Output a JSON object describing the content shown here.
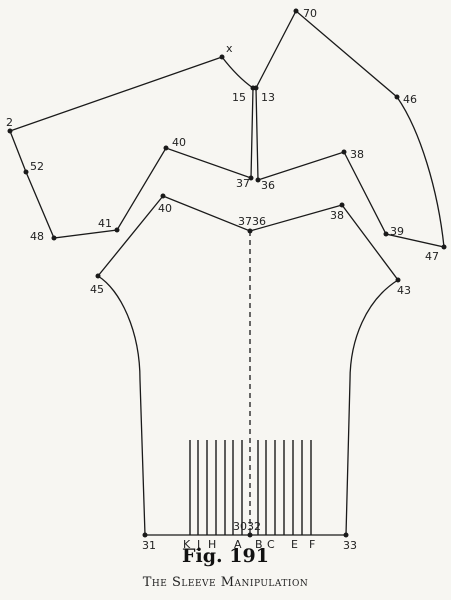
{
  "figure": {
    "title": "Fig. 191",
    "caption": "The Sleeve Manipulation"
  },
  "point_labels": {
    "x": "x",
    "p2": "2",
    "p52": "52",
    "p48": "48",
    "p41": "41",
    "p40_upper": "40",
    "p37_upper": "37",
    "p36_upper": "36",
    "p38_upper": "38",
    "p15": "15",
    "p13": "13",
    "p70": "70",
    "p46": "46",
    "p47": "47",
    "p39": "39",
    "p45": "45",
    "p40_lower": "40",
    "p3736_lower": "3736",
    "p38_lower": "38",
    "p43": "43",
    "p31": "31",
    "p33": "33",
    "p3032": "3032"
  },
  "slash_labels": [
    "K",
    "J",
    "H",
    "A",
    "B",
    "C",
    "E",
    "F"
  ],
  "colors": {
    "ink": "#1a1a1a",
    "paper": "#f7f6f2"
  }
}
